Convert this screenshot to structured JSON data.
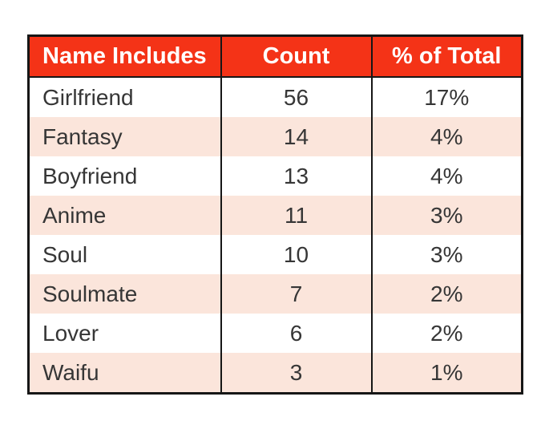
{
  "table": {
    "header": {
      "name_label": "Name Includes",
      "count_label": "Count",
      "pct_label": "% of Total"
    },
    "rows": [
      {
        "name": "Girlfriend",
        "count": "56",
        "pct": "17%"
      },
      {
        "name": "Fantasy",
        "count": "14",
        "pct": "4%"
      },
      {
        "name": "Boyfriend",
        "count": "13",
        "pct": "4%"
      },
      {
        "name": "Anime",
        "count": "11",
        "pct": "3%"
      },
      {
        "name": "Soul",
        "count": "10",
        "pct": "3%"
      },
      {
        "name": "Soulmate",
        "count": "7",
        "pct": "2%"
      },
      {
        "name": "Lover",
        "count": "6",
        "pct": "2%"
      },
      {
        "name": "Waifu",
        "count": "3",
        "pct": "1%"
      }
    ]
  },
  "colors": {
    "header_bg": "#F43317",
    "header_text": "#FFFFFF",
    "row_alt_bg": "#FBE5DB",
    "row_bg": "#FFFFFF",
    "border": "#161616",
    "body_text": "#363636"
  },
  "chart_data": {
    "type": "table",
    "title": "",
    "columns": [
      "Name Includes",
      "Count",
      "% of Total"
    ],
    "rows": [
      [
        "Girlfriend",
        56,
        "17%"
      ],
      [
        "Fantasy",
        14,
        "4%"
      ],
      [
        "Boyfriend",
        13,
        "4%"
      ],
      [
        "Anime",
        11,
        "3%"
      ],
      [
        "Soul",
        10,
        "3%"
      ],
      [
        "Soulmate",
        7,
        "2%"
      ],
      [
        "Lover",
        6,
        "2%"
      ],
      [
        "Waifu",
        3,
        "1%"
      ]
    ],
    "layout": {
      "header_style": "red background, bold white text",
      "row_striping": "white / light pink alternating",
      "grid": "outer border, header underline and column dividers only"
    }
  }
}
